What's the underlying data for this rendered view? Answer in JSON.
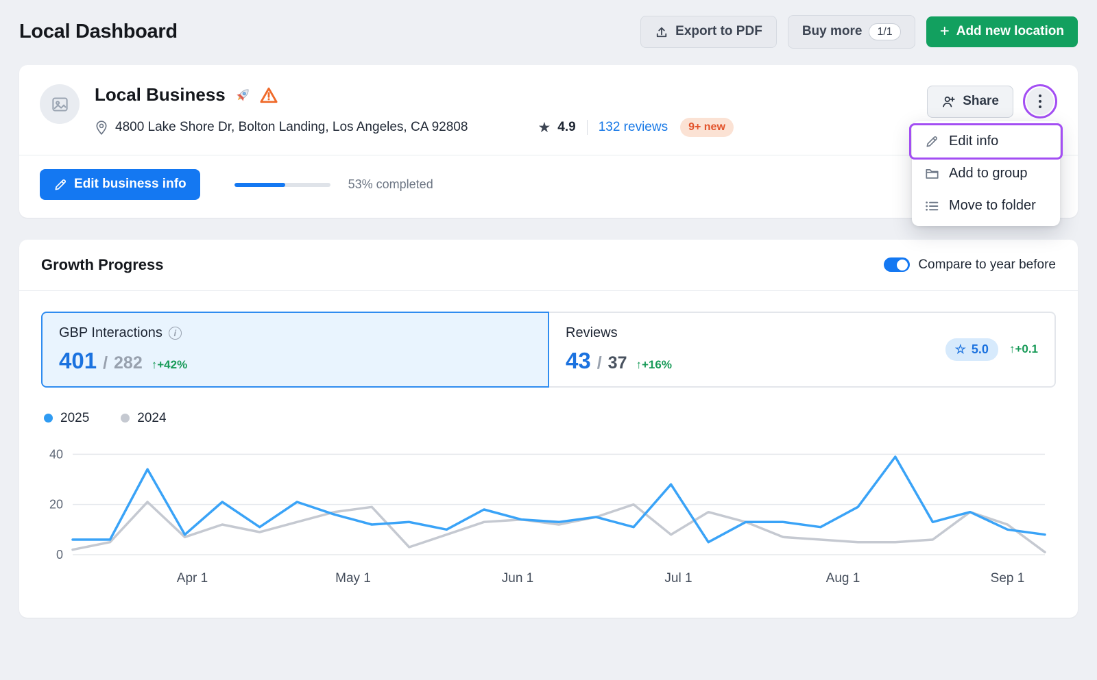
{
  "page_title": "Local Dashboard",
  "toolbar": {
    "export_pdf_label": "Export to PDF",
    "buy_more_label": "Buy more",
    "buy_more_count": "1/1",
    "add_location_label": "Add new location"
  },
  "business_card": {
    "name": "Local Business",
    "address": "4800 Lake Shore Dr, Bolton Landing, Los Angeles, CA 92808",
    "rating": "4.9",
    "reviews_link": "132 reviews",
    "new_reviews_badge": "9+ new",
    "share_label": "Share",
    "edit_info_button": "Edit business info",
    "progress_percent": 53,
    "progress_label": "53% completed",
    "menu_items": [
      {
        "label": "Edit info"
      },
      {
        "label": "Add to group"
      },
      {
        "label": "Move to folder"
      }
    ]
  },
  "growth_card": {
    "title": "Growth Progress",
    "toggle_label": "Compare to year before",
    "compare_enabled": true,
    "metric_tabs": [
      {
        "label": "GBP Interactions",
        "current": "401",
        "separator": "/",
        "previous": "282",
        "delta": "↑+42%"
      },
      {
        "label": "Reviews",
        "current": "43",
        "separator": "/",
        "previous": "37",
        "delta": "↑+16%",
        "rating_value": "5.0",
        "rating_delta": "↑+0.1"
      }
    ],
    "legend": [
      {
        "label": "2025",
        "color": "#2f9bf2"
      },
      {
        "label": "2024",
        "color": "#c5c9d1"
      }
    ]
  },
  "colors": {
    "accent_blue": "#1478f2",
    "green_button": "#12a05f",
    "delta_green": "#179a57",
    "annotation_purple": "#a34ef3",
    "new_badge_bg": "#fbe2d4",
    "new_badge_text": "#e2532b",
    "selected_tab_bg": "#e9f4fe",
    "selected_tab_border": "#2f8cf0"
  },
  "chart_data": {
    "type": "line",
    "title": "Growth Progress",
    "ylim": [
      0,
      42
    ],
    "yticks": [
      0,
      20,
      40
    ],
    "grid": true,
    "legend_position": "top-left",
    "x_ticks": [
      {
        "label": "Apr 1",
        "index": 3.2
      },
      {
        "label": "May 1",
        "index": 7.5
      },
      {
        "label": "Jun 1",
        "index": 11.9
      },
      {
        "label": "Jul 1",
        "index": 16.2
      },
      {
        "label": "Aug 1",
        "index": 20.6
      },
      {
        "label": "Sep 1",
        "index": 25.0
      }
    ],
    "series": [
      {
        "name": "2025",
        "color": "#3aa3f7",
        "values": [
          6,
          6,
          34,
          8,
          21,
          11,
          21,
          16,
          12,
          13,
          10,
          18,
          14,
          13,
          15,
          11,
          28,
          5,
          13,
          13,
          11,
          19,
          39,
          13,
          17,
          10,
          8
        ]
      },
      {
        "name": "2024",
        "color": "#c5c9d1",
        "values": [
          2,
          5,
          21,
          7,
          12,
          9,
          13,
          17,
          19,
          3,
          8,
          13,
          14,
          12,
          15,
          20,
          8,
          17,
          13,
          7,
          6,
          5,
          5,
          6,
          17,
          12,
          1
        ]
      }
    ]
  }
}
